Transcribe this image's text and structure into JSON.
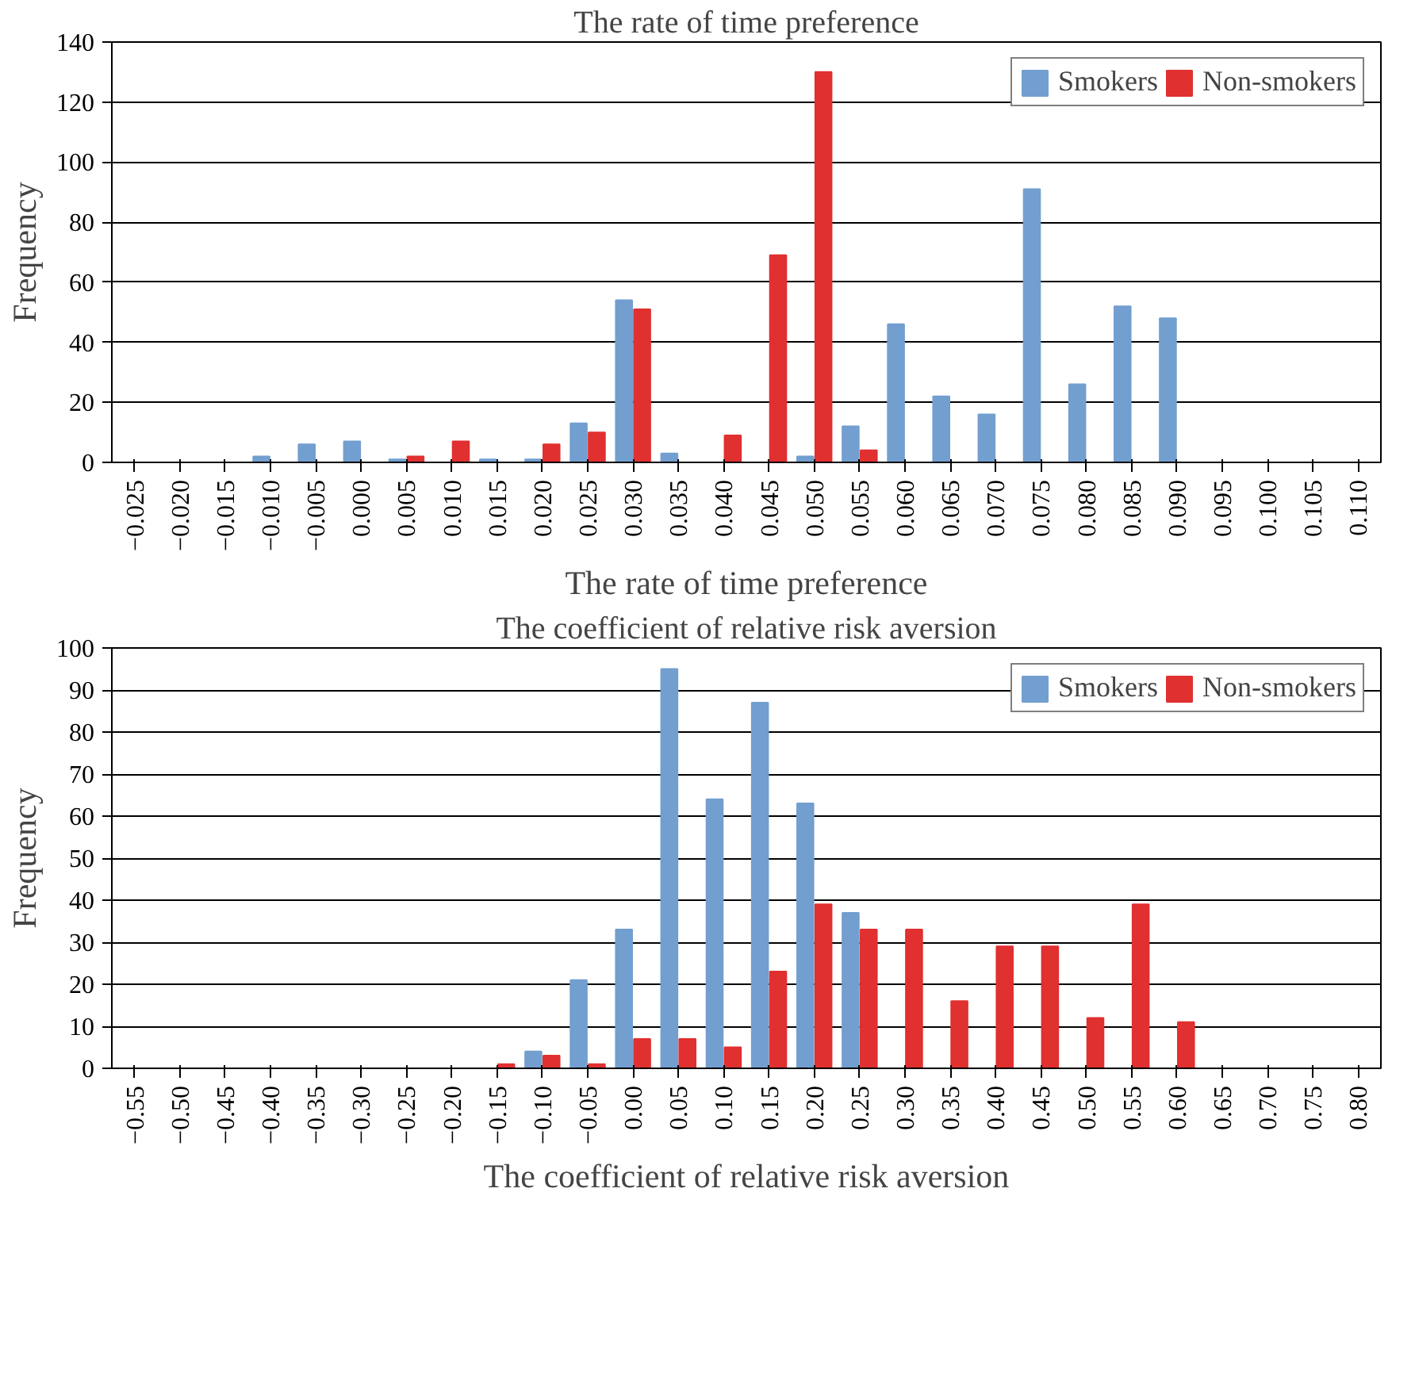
{
  "chart_data": [
    {
      "type": "bar",
      "title": "The rate of time preference",
      "xlabel": "The rate of time preference",
      "ylabel": "Frequency",
      "categories": [
        "−0.025",
        "−0.020",
        "−0.015",
        "−0.010",
        "−0.005",
        "0.000",
        "0.005",
        "0.010",
        "0.015",
        "0.020",
        "0.025",
        "0.030",
        "0.035",
        "0.040",
        "0.045",
        "0.050",
        "0.055",
        "0.060",
        "0.065",
        "0.070",
        "0.075",
        "0.080",
        "0.085",
        "0.090",
        "0.095",
        "0.100",
        "0.105",
        "0.110"
      ],
      "series": [
        {
          "name": "Smokers",
          "color": "#729fcf",
          "values": [
            0,
            0,
            0,
            2,
            6,
            7,
            1,
            0,
            1,
            1,
            13,
            54,
            3,
            0,
            0,
            2,
            12,
            46,
            22,
            16,
            91,
            26,
            52,
            48,
            0,
            0,
            0,
            0
          ]
        },
        {
          "name": "Non-smokers",
          "color": "#e03030",
          "values": [
            0,
            0,
            0,
            0,
            0,
            0,
            2,
            7,
            0,
            6,
            10,
            51,
            0,
            9,
            69,
            130,
            4,
            0,
            0,
            0,
            0,
            0,
            0,
            0,
            0,
            0,
            0,
            0
          ]
        }
      ],
      "ylim": [
        0,
        140
      ],
      "yticks": [
        0,
        20,
        40,
        60,
        80,
        100,
        120,
        140
      ],
      "grid": "y",
      "legend": "top right"
    },
    {
      "type": "bar",
      "title": "The coefficient of relative risk aversion",
      "xlabel": "The coefficient of relative risk aversion",
      "ylabel": "Frequency",
      "categories": [
        "−0.55",
        "−0.50",
        "−0.45",
        "−0.40",
        "−0.35",
        "−0.30",
        "−0.25",
        "−0.20",
        "−0.15",
        "−0.10",
        "−0.05",
        "0.00",
        "0.05",
        "0.10",
        "0.15",
        "0.20",
        "0.25",
        "0.30",
        "0.35",
        "0.40",
        "0.45",
        "0.50",
        "0.55",
        "0.60",
        "0.65",
        "0.70",
        "0.75",
        "0.80"
      ],
      "series": [
        {
          "name": "Smokers",
          "color": "#729fcf",
          "values": [
            0,
            0,
            0,
            0,
            0,
            0,
            0,
            0,
            0,
            4,
            21,
            33,
            95,
            64,
            87,
            63,
            37,
            0,
            0,
            0,
            0,
            0,
            0,
            0,
            0,
            0,
            0,
            0
          ]
        },
        {
          "name": "Non-smokers",
          "color": "#e03030",
          "values": [
            0,
            0,
            0,
            0,
            0,
            0,
            0,
            0,
            1,
            3,
            1,
            7,
            7,
            5,
            23,
            39,
            33,
            33,
            16,
            29,
            29,
            12,
            39,
            11,
            0,
            0,
            0,
            0
          ]
        }
      ],
      "ylim": [
        0,
        100
      ],
      "yticks": [
        0,
        10,
        20,
        30,
        40,
        50,
        60,
        70,
        80,
        90,
        100
      ],
      "grid": "y",
      "legend": "top right"
    }
  ]
}
